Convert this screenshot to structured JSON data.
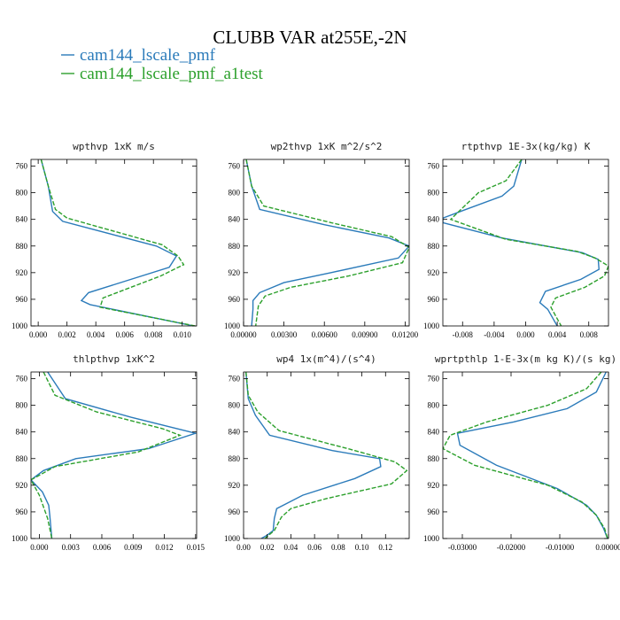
{
  "figure": {
    "title": "CLUBB VAR at255E,-2N",
    "legend": [
      {
        "label": "cam144_lscale_pmf",
        "color": "#2b7bba"
      },
      {
        "label": "cam144_lscale_pmf_a1test",
        "color": "#2ca02c"
      }
    ]
  },
  "chart_data": [
    {
      "type": "line",
      "title": "wpthvp  1xK m/s",
      "xlim": [
        -0.0005,
        0.011
      ],
      "ylim": [
        1000,
        750
      ],
      "y_inverted": true,
      "x_ticks": [
        0,
        0.002,
        0.004,
        0.006,
        0.008,
        0.01
      ],
      "x_tick_labels": [
        "0.000",
        "0.002",
        "0.004",
        "0.006",
        "0.008",
        "0.010"
      ],
      "y_ticks": [
        760,
        800,
        840,
        880,
        920,
        960,
        1000
      ],
      "y_tick_labels": [
        "760",
        "800",
        "840",
        "880",
        "920",
        "960",
        "1000"
      ],
      "series": [
        {
          "name": "cam144_lscale_pmf",
          "color": "#2b7bba",
          "dashed": false,
          "x": [
            0.0002,
            0.0007,
            0.001,
            0.0017,
            0.0082,
            0.0096,
            0.0091,
            0.0035,
            0.003,
            0.0036,
            0.0108
          ],
          "y": [
            750,
            790,
            828,
            843,
            880,
            895,
            912,
            950,
            962,
            968,
            1000
          ]
        },
        {
          "name": "cam144_lscale_pmf_a1test",
          "color": "#2ca02c",
          "dashed": true,
          "x": [
            0.0002,
            0.0007,
            0.0012,
            0.002,
            0.0086,
            0.0097,
            0.0101,
            0.0085,
            0.0045,
            0.0043,
            0.0109
          ],
          "y": [
            750,
            790,
            825,
            838,
            878,
            895,
            908,
            925,
            958,
            972,
            1000
          ]
        }
      ]
    },
    {
      "type": "line",
      "title": "wp2thvp  1xK m^2/s^2",
      "xlim": [
        0,
        0.0123
      ],
      "ylim": [
        1000,
        750
      ],
      "y_inverted": true,
      "x_ticks": [
        0,
        0.003,
        0.006,
        0.009,
        0.012
      ],
      "x_tick_labels": [
        "0.00000",
        "0.00300",
        "0.00600",
        "0.00900",
        "0.01200"
      ],
      "y_ticks": [
        760,
        800,
        840,
        880,
        920,
        960,
        1000
      ],
      "y_tick_labels": [
        "760",
        "800",
        "840",
        "880",
        "920",
        "960",
        "1000"
      ],
      "series": [
        {
          "name": "cam144_lscale_pmf",
          "color": "#2b7bba",
          "dashed": false,
          "x": [
            0.0002,
            0.0006,
            0.0012,
            0.006,
            0.0108,
            0.0123,
            0.0115,
            0.0065,
            0.003,
            0.0012,
            0.0007,
            0.0007,
            0.0006
          ],
          "y": [
            750,
            790,
            825,
            848,
            868,
            880,
            898,
            920,
            935,
            950,
            962,
            975,
            1000
          ]
        },
        {
          "name": "cam144_lscale_pmf_a1test",
          "color": "#2ca02c",
          "dashed": true,
          "x": [
            0.0002,
            0.0006,
            0.0015,
            0.0065,
            0.011,
            0.0123,
            0.0118,
            0.0078,
            0.0035,
            0.0016,
            0.0011,
            0.0009
          ],
          "y": [
            750,
            790,
            820,
            845,
            866,
            882,
            905,
            925,
            942,
            955,
            970,
            1000
          ]
        }
      ]
    },
    {
      "type": "line",
      "title": "rtpthvp  1E-3x(kg/kg) K",
      "xlim": [
        -0.0105,
        0.0105
      ],
      "ylim": [
        1000,
        750
      ],
      "y_inverted": true,
      "x_ticks": [
        -0.008,
        -0.004,
        0,
        0.004,
        0.008
      ],
      "x_tick_labels": [
        "-0.008",
        "-0.004",
        "0.000",
        "0.004",
        "0.008"
      ],
      "y_ticks": [
        760,
        800,
        840,
        880,
        920,
        960,
        1000
      ],
      "y_tick_labels": [
        "760",
        "800",
        "840",
        "880",
        "920",
        "960",
        "1000"
      ],
      "series": [
        {
          "name": "cam144_lscale_pmf",
          "color": "#2b7bba",
          "dashed": false,
          "x": [
            -0.0005,
            -0.0015,
            -0.003,
            -0.0078,
            -0.0105,
            -0.0105,
            -0.003,
            0.0072,
            0.0092,
            0.0093,
            0.007,
            0.0025,
            0.0018,
            0.0028,
            0.004
          ],
          "y": [
            750,
            790,
            805,
            826,
            838,
            845,
            868,
            890,
            900,
            915,
            930,
            948,
            965,
            975,
            1000
          ]
        },
        {
          "name": "cam144_lscale_pmf_a1test",
          "color": "#2ca02c",
          "dashed": true,
          "x": [
            -0.0005,
            -0.0025,
            -0.006,
            -0.0082,
            -0.0095,
            -0.0025,
            0.0065,
            0.0088,
            0.0105,
            0.01,
            0.0075,
            0.0038,
            0.0032,
            0.0045
          ],
          "y": [
            750,
            782,
            800,
            825,
            840,
            870,
            888,
            898,
            910,
            925,
            942,
            958,
            972,
            1000
          ]
        }
      ]
    },
    {
      "type": "line",
      "title": "thlpthvp  1xK^2",
      "xlim": [
        -0.0008,
        0.0151
      ],
      "ylim": [
        1000,
        750
      ],
      "y_inverted": true,
      "x_ticks": [
        0,
        0.003,
        0.006,
        0.009,
        0.012,
        0.015
      ],
      "x_tick_labels": [
        "0.000",
        "0.003",
        "0.006",
        "0.009",
        "0.012",
        "0.015"
      ],
      "y_ticks": [
        760,
        800,
        840,
        880,
        920,
        960,
        1000
      ],
      "y_tick_labels": [
        "760",
        "800",
        "840",
        "880",
        "920",
        "960",
        "1000"
      ],
      "series": [
        {
          "name": "cam144_lscale_pmf",
          "color": "#2b7bba",
          "dashed": false,
          "x": [
            0.0008,
            0.0025,
            0.0088,
            0.015,
            0.0105,
            0.0035,
            0.0004,
            -0.0008,
            0.0003,
            0.0009,
            0.001,
            0.0012
          ],
          "y": [
            750,
            790,
            818,
            842,
            865,
            880,
            898,
            912,
            930,
            950,
            965,
            1000
          ]
        },
        {
          "name": "cam144_lscale_pmf_a1test",
          "color": "#2ca02c",
          "dashed": true,
          "x": [
            0.0004,
            0.0015,
            0.0055,
            0.0118,
            0.0135,
            0.0095,
            0.0015,
            -0.0008,
            0.0,
            0.0008,
            0.0012
          ],
          "y": [
            750,
            785,
            810,
            835,
            845,
            870,
            892,
            912,
            935,
            970,
            1000
          ]
        }
      ]
    },
    {
      "type": "line",
      "title": "wp4  1x(m^4)/(s^4)",
      "xlim": [
        0,
        0.14
      ],
      "ylim": [
        1000,
        750
      ],
      "y_inverted": true,
      "x_ticks": [
        0,
        0.02,
        0.04,
        0.06,
        0.08,
        0.1,
        0.12
      ],
      "x_tick_labels": [
        "0.00",
        "0.02",
        "0.04",
        "0.06",
        "0.08",
        "0.10",
        "0.12"
      ],
      "y_ticks": [
        760,
        800,
        840,
        880,
        920,
        960,
        1000
      ],
      "y_tick_labels": [
        "760",
        "800",
        "840",
        "880",
        "920",
        "960",
        "1000"
      ],
      "series": [
        {
          "name": "cam144_lscale_pmf",
          "color": "#2b7bba",
          "dashed": false,
          "x": [
            0.002,
            0.004,
            0.01,
            0.022,
            0.075,
            0.115,
            0.116,
            0.094,
            0.05,
            0.028,
            0.026,
            0.025,
            0.02,
            0.015
          ],
          "y": [
            750,
            790,
            815,
            845,
            868,
            880,
            892,
            910,
            935,
            955,
            970,
            988,
            995,
            1000
          ]
        },
        {
          "name": "cam144_lscale_pmf_a1test",
          "color": "#2ca02c",
          "dashed": true,
          "x": [
            0.002,
            0.004,
            0.012,
            0.03,
            0.09,
            0.128,
            0.138,
            0.125,
            0.07,
            0.04,
            0.032,
            0.026,
            0.018
          ],
          "y": [
            750,
            785,
            810,
            838,
            866,
            885,
            898,
            918,
            940,
            955,
            968,
            988,
            1000
          ]
        }
      ]
    },
    {
      "type": "line",
      "title": "wprtpthlp  1-E-3x(m kg K)/(s kg)",
      "xlim": [
        -0.034,
        0
      ],
      "ylim": [
        1000,
        750
      ],
      "y_inverted": true,
      "x_ticks": [
        -0.03,
        -0.02,
        -0.01,
        0
      ],
      "x_tick_labels": [
        "-0.03000",
        "-0.02000",
        "-0.01000",
        "0.00000"
      ],
      "y_ticks": [
        760,
        800,
        840,
        880,
        920,
        960,
        1000
      ],
      "y_tick_labels": [
        "760",
        "800",
        "840",
        "880",
        "920",
        "960",
        "1000"
      ],
      "series": [
        {
          "name": "cam144_lscale_pmf",
          "color": "#2b7bba",
          "dashed": false,
          "x": [
            -0.0005,
            -0.0025,
            -0.0085,
            -0.0195,
            -0.031,
            -0.0305,
            -0.023,
            -0.0105,
            -0.0045,
            -0.0025,
            -0.001,
            -0.0002
          ],
          "y": [
            750,
            780,
            805,
            825,
            842,
            860,
            890,
            925,
            950,
            965,
            985,
            1000
          ]
        },
        {
          "name": "cam144_lscale_pmf_a1test",
          "color": "#2ca02c",
          "dashed": true,
          "x": [
            -0.0015,
            -0.0045,
            -0.0125,
            -0.025,
            -0.0325,
            -0.034,
            -0.0275,
            -0.0125,
            -0.0055,
            -0.0025,
            -0.0008,
            -0.0002
          ],
          "y": [
            750,
            775,
            800,
            825,
            845,
            865,
            890,
            920,
            945,
            965,
            985,
            1000
          ]
        }
      ]
    }
  ]
}
